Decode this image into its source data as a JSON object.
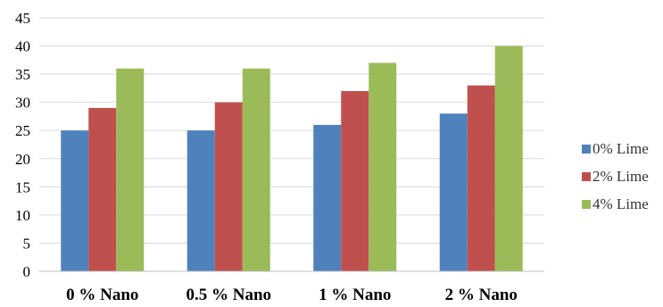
{
  "chart_data": {
    "type": "bar",
    "title": "",
    "xlabel": "",
    "ylabel": "",
    "categories": [
      "0 % Nano",
      "0.5 % Nano",
      "1 % Nano",
      "2 % Nano"
    ],
    "series": [
      {
        "name": "0% Lime",
        "color": "#4F81BD",
        "values": [
          25,
          25,
          26,
          28
        ]
      },
      {
        "name": "2% Lime",
        "color": "#C0504D",
        "values": [
          29,
          30,
          32,
          33
        ]
      },
      {
        "name": "4% Lime",
        "color": "#9BBB59",
        "values": [
          36,
          36,
          37,
          40
        ]
      }
    ],
    "ylim": [
      0,
      45
    ],
    "yticks": [
      "0",
      "5",
      "10",
      "15",
      "20",
      "25",
      "30",
      "35",
      "40",
      "45"
    ],
    "grid": true,
    "legend_position": "right"
  }
}
